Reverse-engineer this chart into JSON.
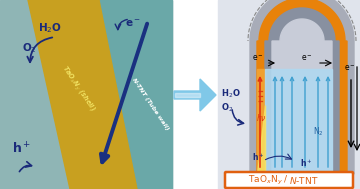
{
  "fig_width": 3.6,
  "fig_height": 1.89,
  "dpi": 100,
  "bg_left": "#8fb5b5",
  "bg_gold": "#c8a020",
  "bg_teal": "#6aa8a8",
  "orange_shell": "#e8820a",
  "gray_outer": "#a8acb8",
  "gray_inner": "#8890a0",
  "inner_light": "#c8ccd8",
  "band_orange": "#f09030",
  "band_blue": "#b8ddf0",
  "arrow_blue": "#1a3080",
  "arrow_cyan": "#50b8d8",
  "text_navy": "#1a2a7a",
  "text_orange": "#e06010",
  "label_box_color": "#e06010",
  "right_bg": "#e0e4ec"
}
